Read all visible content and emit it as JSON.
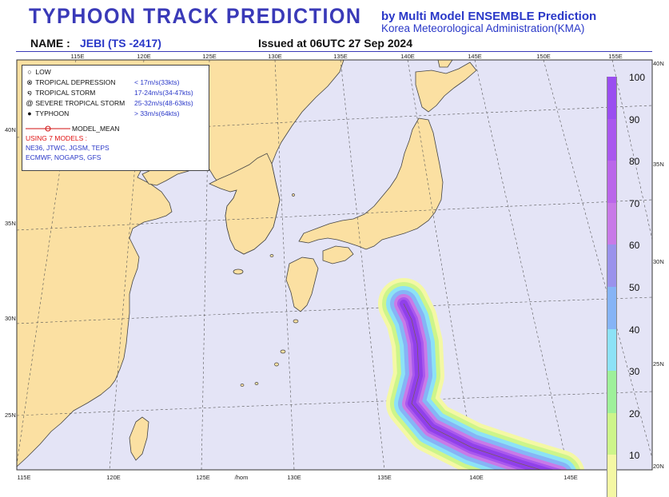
{
  "header": {
    "title": "TYPHOON  TRACK  PREDICTION",
    "byline_1": "by Multi Model ENSEMBLE Prediction",
    "byline_2": "Korea Meteorological Administration(KMA)",
    "name_label": "NAME :",
    "storm_name": "JEBI (TS -2417)",
    "issued": "Issued at 06UTC 27 Sep 2024"
  },
  "map": {
    "top_lon_labels": [
      "115E",
      "120E",
      "125E",
      "130E",
      "135E",
      "140E",
      "145E",
      "150E",
      "155E"
    ],
    "bottom_lon_labels": [
      "115E",
      "120E",
      "125E",
      "/hom",
      "130E",
      "135E",
      "140E",
      "145E"
    ],
    "left_lat_labels": [
      "40N",
      "35N",
      "30N",
      "25N"
    ],
    "right_lat_labels": [
      "40N",
      "35N",
      "30N",
      "25N",
      "20N"
    ],
    "land_color": "#fbe0a2",
    "sea_color": "#e4e4f6"
  },
  "legend": {
    "items": [
      {
        "symbol": "low-symbol",
        "label": "LOW",
        "value": ""
      },
      {
        "symbol": "tropical-depression-symbol",
        "label": "TROPICAL DEPRESSION",
        "value": "< 17m/s(33kts)"
      },
      {
        "symbol": "tropical-storm-symbol",
        "label": "TROPICAL STORM",
        "value": "17-24m/s(34-47kts)"
      },
      {
        "symbol": "severe-tropical-storm-symbol",
        "label": "SEVERE TROPICAL STORM",
        "value": "25-32m/s(48-63kts)"
      },
      {
        "symbol": "typhoon-symbol",
        "label": "TYPHOON",
        "value": "> 33m/s(64kts)"
      }
    ],
    "model_mean_label": "MODEL_MEAN",
    "models_heading": "USING 7 MODELS :",
    "models_line_1": "NE36, JTWC, JGSM, TEPS",
    "models_line_2": "ECMWF, NOGAPS, GFS"
  },
  "probability_scale": {
    "labels": [
      "100",
      "90",
      "80",
      "70",
      "60",
      "50",
      "40",
      "30",
      "20",
      "10"
    ],
    "colors": [
      "#9a4ef0",
      "#a958ee",
      "#ba66ea",
      "#c87ae8",
      "#9a92ec",
      "#86b4f6",
      "#8ce2f6",
      "#9ef09a",
      "#cdf58a",
      "#f4f8a4"
    ]
  },
  "track": {
    "probability_percent": [
      20,
      40,
      60,
      80,
      100
    ]
  }
}
